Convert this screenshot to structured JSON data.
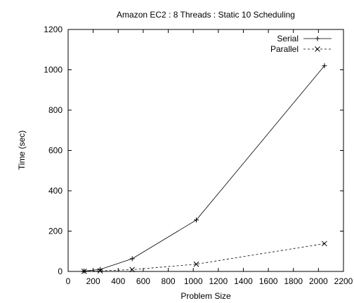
{
  "chart_data": {
    "type": "line",
    "title": "Amazon EC2 : 8 Threads : Static 10 Scheduling",
    "xlabel": "Problem Size",
    "ylabel": "Time (sec)",
    "xlim": [
      0,
      2200
    ],
    "ylim": [
      0,
      1200
    ],
    "xticks": [
      0,
      200,
      400,
      600,
      800,
      1000,
      1200,
      1400,
      1600,
      1800,
      2000,
      2200
    ],
    "yticks": [
      0,
      200,
      400,
      600,
      800,
      1000,
      1200
    ],
    "grid": false,
    "legend_position": "top-right",
    "series": [
      {
        "name": "Serial",
        "marker": "plus",
        "line": "solid",
        "color": "#000000",
        "points": [
          [
            128,
            2
          ],
          [
            256,
            10
          ],
          [
            512,
            63
          ],
          [
            1024,
            255
          ],
          [
            2048,
            1020
          ]
        ]
      },
      {
        "name": "Parallel",
        "marker": "cross",
        "line": "dashed",
        "color": "#000000",
        "points": [
          [
            128,
            1
          ],
          [
            256,
            3
          ],
          [
            512,
            9
          ],
          [
            1024,
            36
          ],
          [
            2048,
            138
          ]
        ]
      }
    ]
  }
}
